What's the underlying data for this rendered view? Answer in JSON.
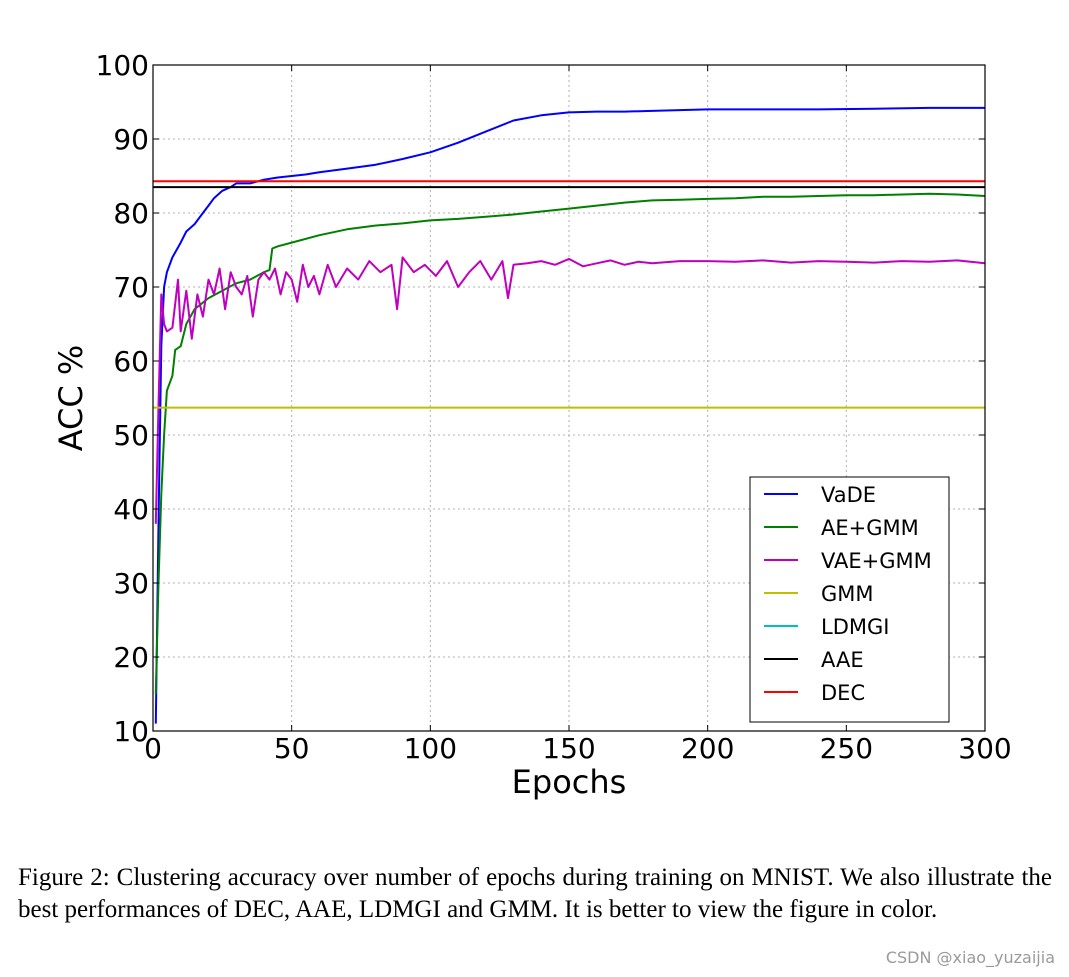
{
  "chart_data": {
    "type": "line",
    "xlabel": "Epochs",
    "ylabel": "ACC %",
    "xlim": [
      0,
      300
    ],
    "ylim": [
      10,
      100
    ],
    "xticks": [
      0,
      50,
      100,
      150,
      200,
      250,
      300
    ],
    "yticks": [
      10,
      20,
      30,
      40,
      50,
      60,
      70,
      80,
      90,
      100
    ],
    "grid": true,
    "legend_position": "lower-right",
    "series": [
      {
        "name": "VaDE",
        "color": "#0000ff",
        "x": [
          1,
          2,
          3,
          4,
          5,
          7,
          10,
          12,
          15,
          18,
          20,
          22,
          25,
          28,
          30,
          35,
          40,
          45,
          50,
          55,
          60,
          70,
          80,
          90,
          100,
          110,
          120,
          130,
          140,
          150,
          160,
          170,
          180,
          190,
          200,
          220,
          240,
          260,
          280,
          300
        ],
        "y": [
          11,
          38,
          62,
          70,
          72,
          74,
          76,
          77.5,
          78.5,
          80,
          81,
          82,
          83,
          83.5,
          84,
          84,
          84.5,
          84.8,
          85,
          85.2,
          85.5,
          86,
          86.5,
          87.3,
          88.2,
          89.5,
          91,
          92.5,
          93.2,
          93.6,
          93.7,
          93.7,
          93.8,
          93.9,
          94,
          94,
          94,
          94.1,
          94.2,
          94.2
        ]
      },
      {
        "name": "AE+GMM",
        "color": "#008000",
        "x": [
          1,
          2,
          3,
          4,
          5,
          7,
          8,
          10,
          12,
          15,
          20,
          25,
          30,
          35,
          40,
          42,
          43,
          45,
          50,
          60,
          70,
          80,
          90,
          100,
          110,
          120,
          130,
          140,
          150,
          160,
          170,
          180,
          190,
          200,
          210,
          220,
          230,
          240,
          250,
          260,
          270,
          280,
          290,
          300
        ],
        "y": [
          15,
          30,
          42,
          50,
          56,
          58,
          61.5,
          62,
          65,
          67,
          68.5,
          69.5,
          70.5,
          71,
          72,
          72.3,
          75.2,
          75.5,
          76,
          77,
          77.8,
          78.3,
          78.6,
          79,
          79.2,
          79.5,
          79.8,
          80.2,
          80.6,
          81,
          81.4,
          81.7,
          81.8,
          81.9,
          82,
          82.2,
          82.2,
          82.3,
          82.4,
          82.4,
          82.5,
          82.6,
          82.5,
          82.3
        ]
      },
      {
        "name": "VAE+GMM",
        "color": "#bf00bf",
        "x": [
          1,
          2,
          3,
          4,
          5,
          7,
          9,
          10,
          12,
          14,
          16,
          18,
          20,
          22,
          24,
          26,
          28,
          30,
          32,
          34,
          36,
          38,
          40,
          42,
          44,
          46,
          48,
          50,
          52,
          54,
          56,
          58,
          60,
          63,
          66,
          70,
          74,
          78,
          82,
          86,
          88,
          90,
          94,
          98,
          102,
          106,
          110,
          114,
          118,
          122,
          126,
          128,
          130,
          135,
          140,
          145,
          150,
          155,
          160,
          165,
          170,
          175,
          180,
          190,
          200,
          210,
          220,
          230,
          240,
          250,
          260,
          270,
          280,
          290,
          300
        ],
        "y": [
          38,
          54,
          69,
          65,
          64,
          64.5,
          71,
          64,
          69.5,
          63,
          69,
          66,
          71,
          69,
          72.5,
          67,
          72,
          70,
          69,
          71.5,
          66,
          71,
          72,
          71,
          72.5,
          69,
          72,
          71,
          68,
          73,
          70,
          71.5,
          69,
          73,
          70,
          72.5,
          71,
          73.5,
          72,
          73,
          67,
          74,
          72,
          73,
          71.5,
          73.5,
          70,
          72,
          73.5,
          71,
          73.5,
          68.5,
          73,
          73.2,
          73.5,
          73,
          73.8,
          72.8,
          73.2,
          73.6,
          73,
          73.4,
          73.2,
          73.5,
          73.5,
          73.4,
          73.6,
          73.3,
          73.5,
          73.4,
          73.3,
          73.5,
          73.4,
          73.6,
          73.2
        ]
      },
      {
        "name": "GMM",
        "color": "#bfbf00",
        "x": [
          0,
          300
        ],
        "y": [
          53.7,
          53.7
        ]
      },
      {
        "name": "LDMGI",
        "color": "#00bfbf",
        "x": [],
        "y": []
      },
      {
        "name": "AAE",
        "color": "#000000",
        "x": [
          0,
          300
        ],
        "y": [
          83.5,
          83.5
        ]
      },
      {
        "name": "DEC",
        "color": "#ff0000",
        "x": [
          0,
          300
        ],
        "y": [
          84.3,
          84.3
        ]
      }
    ]
  },
  "caption": {
    "text": "Figure 2: Clustering accuracy over number of epochs during training on MNIST. We also illustrate the best performances of DEC, AAE, LDMGI and GMM. It is better to view the figure in color."
  },
  "watermark": {
    "text": "CSDN @xiao_yuzaijia"
  }
}
